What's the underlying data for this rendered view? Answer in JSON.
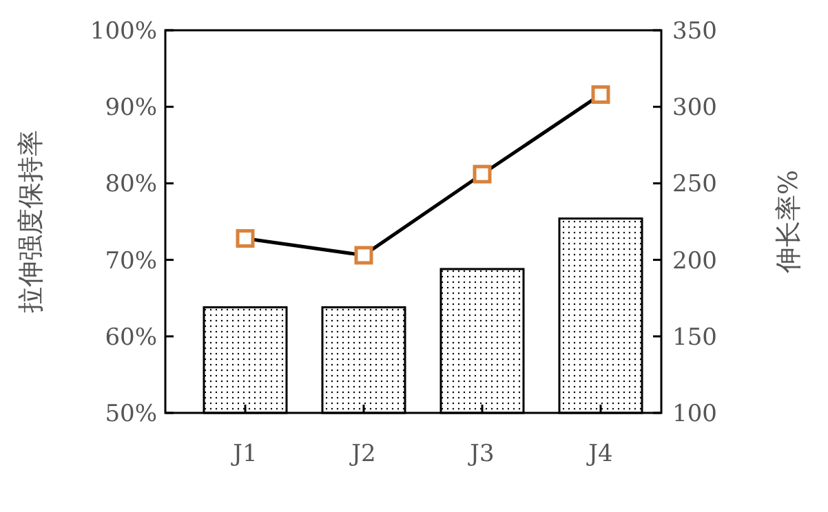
{
  "chart_data": {
    "type": "bar",
    "categories": [
      "J1",
      "J2",
      "J3",
      "J4"
    ],
    "ylabel": "拉伸强度保持率",
    "y2label": "伸长率%",
    "ylim": [
      50,
      100
    ],
    "yticks": [
      {
        "value": 50,
        "label": "50%"
      },
      {
        "value": 60,
        "label": "60%"
      },
      {
        "value": 70,
        "label": "70%"
      },
      {
        "value": 80,
        "label": "80%"
      },
      {
        "value": 90,
        "label": "90%"
      },
      {
        "value": 100,
        "label": "100%"
      }
    ],
    "y2lim": [
      100,
      350
    ],
    "y2ticks": [
      100,
      150,
      200,
      250,
      300,
      350
    ],
    "grid": false,
    "series": [
      {
        "color": "#000000",
        "values": [
          63.8,
          63.8,
          68.8,
          75.4
        ]
      },
      {
        "type": "line",
        "axis": "y2",
        "color": "#000000",
        "marker": "square",
        "values": [
          214,
          203,
          256,
          308
        ]
      }
    ]
  }
}
